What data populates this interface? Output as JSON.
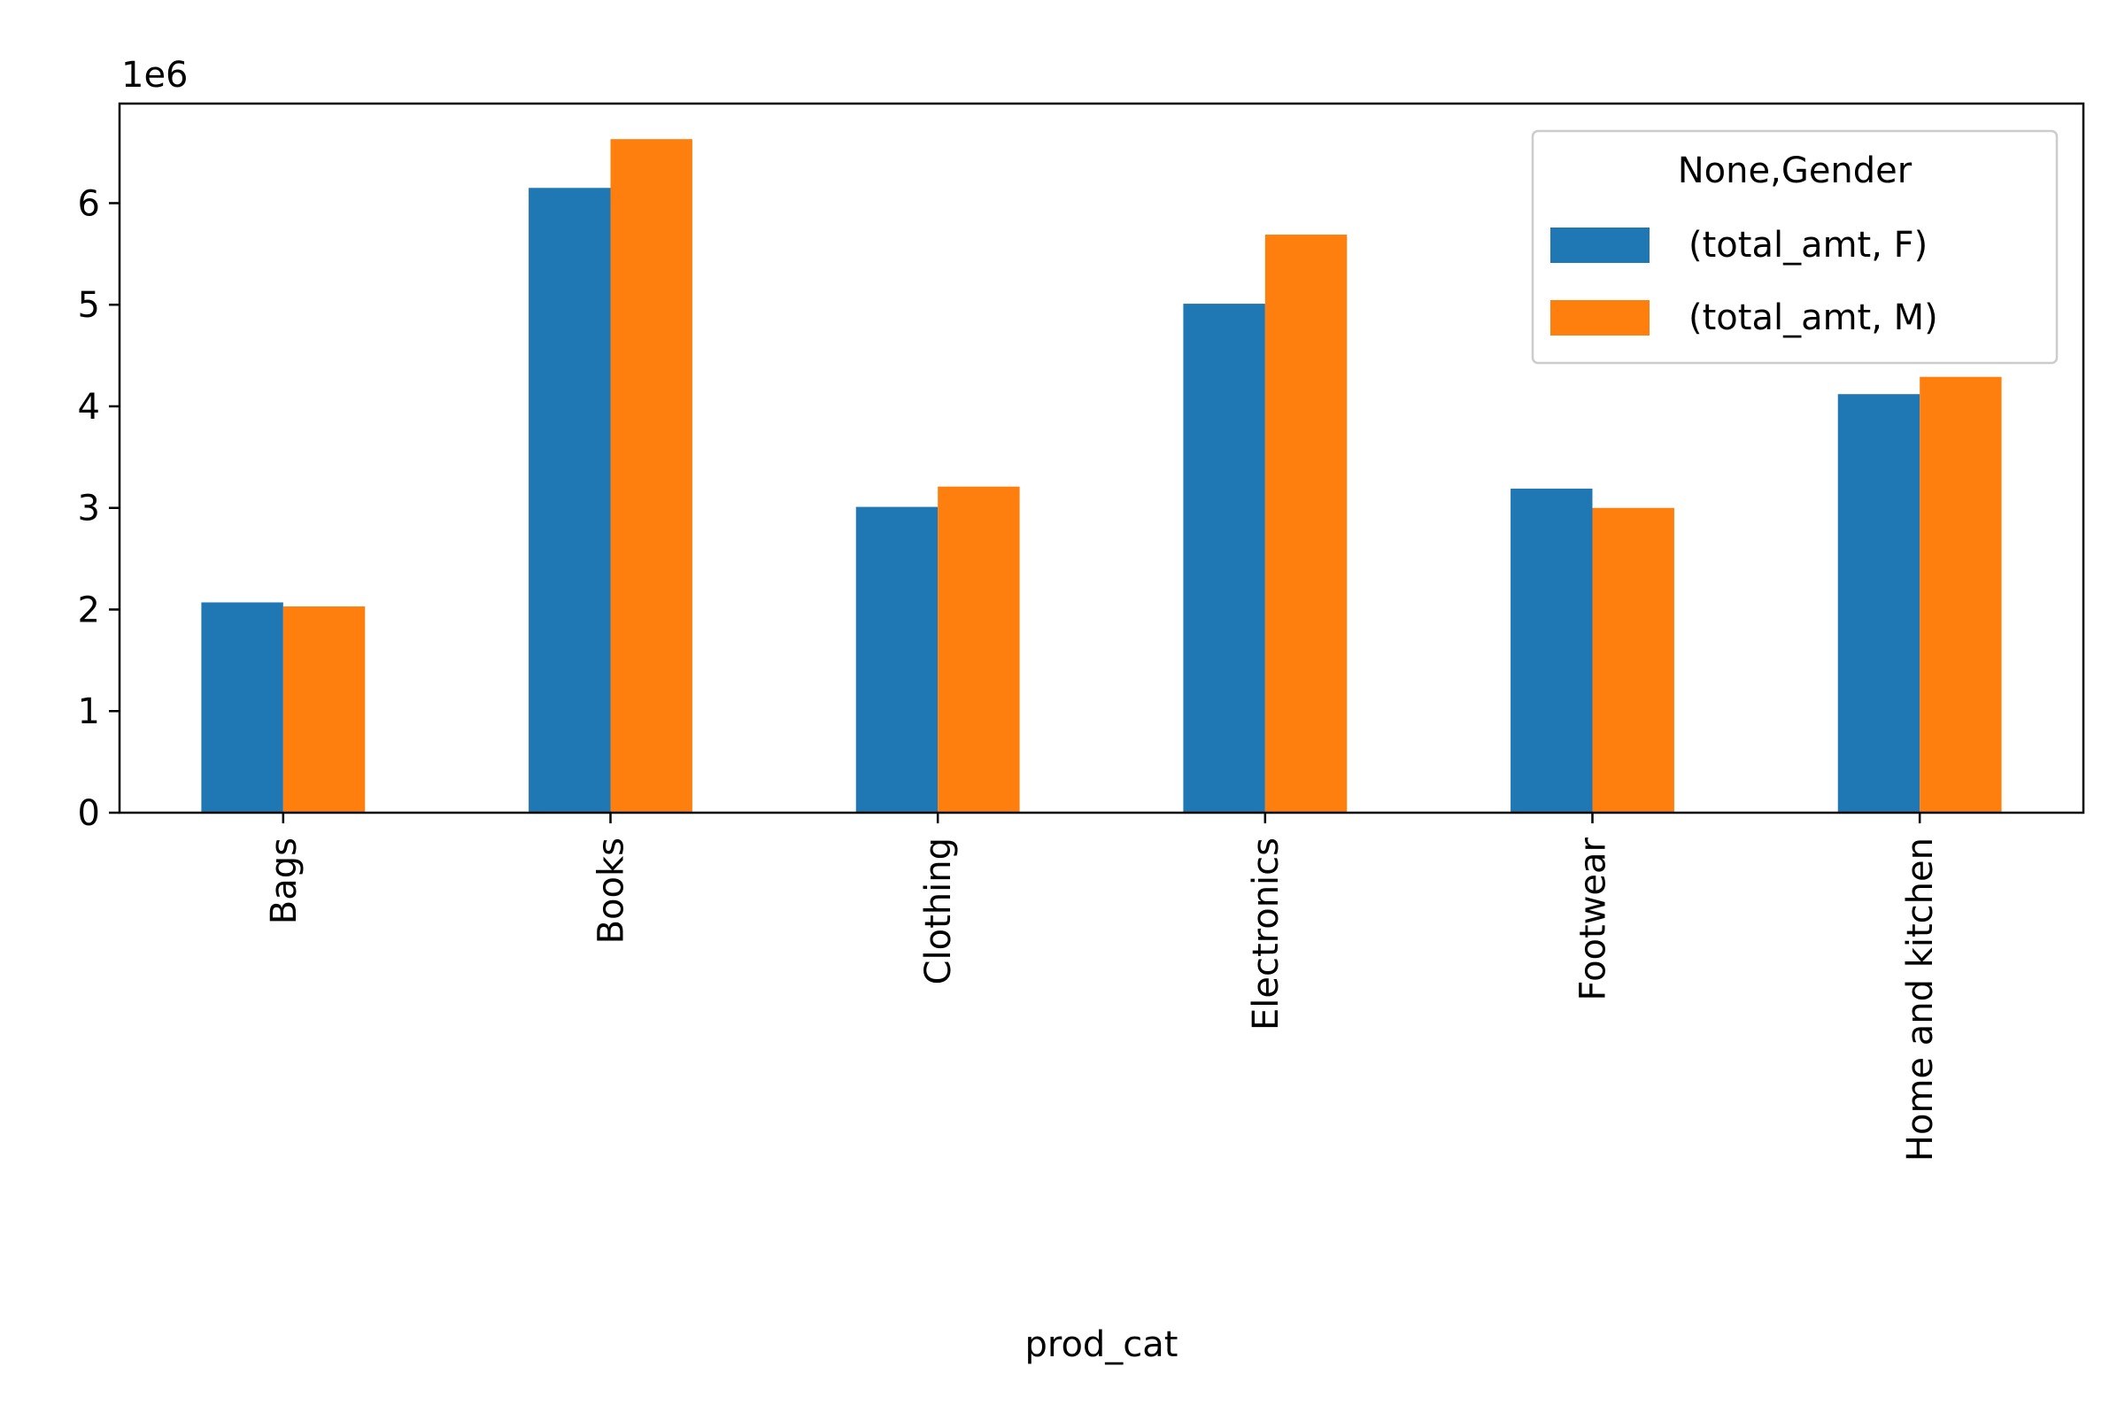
{
  "chart_data": {
    "type": "bar",
    "categories": [
      "Bags",
      "Books",
      "Clothing",
      "Electronics",
      "Footwear",
      "Home and kitchen"
    ],
    "series": [
      {
        "name": "(total_amt, F)",
        "color": "#1f77b4",
        "values": [
          2.07,
          6.15,
          3.01,
          5.01,
          3.19,
          4.12
        ]
      },
      {
        "name": "(total_amt, M)",
        "color": "#ff7f0e",
        "values": [
          2.03,
          6.63,
          3.21,
          5.69,
          3.0,
          4.29
        ]
      }
    ],
    "xlabel": "prod_cat",
    "ylabel": "",
    "ylim": [
      0,
      6.98
    ],
    "yticks": [
      0,
      1,
      2,
      3,
      4,
      5,
      6
    ],
    "y_multiplier": "1e6",
    "legend": {
      "title": "None,Gender",
      "position": "top-right"
    },
    "grid": false
  }
}
